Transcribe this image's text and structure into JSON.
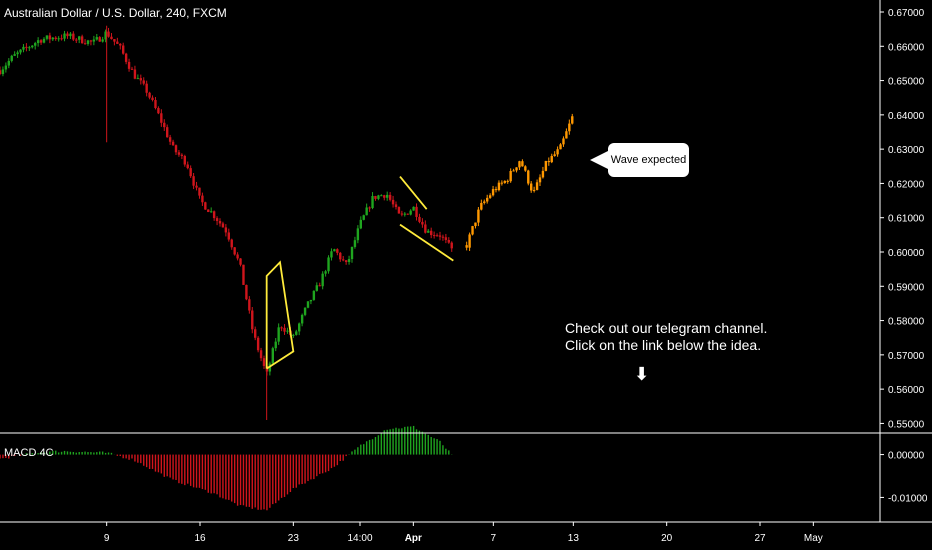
{
  "title": "Australian Dollar / U.S. Dollar, 240, FXCM",
  "indicator_label": "MACD 4C",
  "callout_text": "Wave expected",
  "note": {
    "line1": "Check out our telegram channel.",
    "line2": "Click on the link below the idea."
  },
  "arrow_glyph": "⬇",
  "colors": {
    "background": "#000000",
    "bull": "#1fa51f",
    "bear": "#d0151c",
    "projection": "#ff9800",
    "pattern": "#ffeb3b",
    "axis_text": "#ffffff",
    "divider": "#ffffff"
  },
  "chart_data": [
    {
      "type": "candlestick",
      "title": "Australian Dollar / U.S. Dollar, 240, FXCM",
      "y_ticks": [
        "0.67000",
        "0.66000",
        "0.65000",
        "0.64000",
        "0.63000",
        "0.62000",
        "0.61000",
        "0.60000",
        "0.59000",
        "0.58000",
        "0.57000",
        "0.56000",
        "0.55000"
      ],
      "ylim": [
        0.5475,
        0.6735
      ],
      "x_ticks": [
        "9",
        "16",
        "23",
        "14:00",
        "Apr",
        "7",
        "13",
        "20",
        "27",
        "May"
      ],
      "x_tick_dates": [
        "2019-03-09",
        "2019-03-16",
        "2019-03-23",
        "2019-03-28",
        "2019-04-01",
        "2019-04-07",
        "2019-04-13",
        "2019-04-20",
        "2019-04-27",
        "2019-05-01"
      ],
      "xlim_dates": [
        "2019-03-01",
        "2019-05-06"
      ],
      "series": [
        {
          "kind": "actual",
          "path": [
            [
              "2019-03-01",
              0.653
            ],
            [
              "2019-03-02",
              0.657
            ],
            [
              "2019-03-04",
              0.662
            ],
            [
              "2019-03-06",
              0.663
            ],
            [
              "2019-03-08",
              0.661
            ],
            [
              "2019-03-09",
              0.664
            ],
            [
              "2019-03-10",
              0.6595
            ],
            [
              "2019-03-11",
              0.652
            ],
            [
              "2019-03-12",
              0.647
            ],
            [
              "2019-03-13",
              0.639
            ],
            [
              "2019-03-14",
              0.63
            ],
            [
              "2019-03-15",
              0.626
            ],
            [
              "2019-03-16",
              0.615
            ],
            [
              "2019-03-17",
              0.611
            ],
            [
              "2019-03-18",
              0.606
            ],
            [
              "2019-03-19",
              0.596
            ],
            [
              "2019-03-20",
              0.576
            ],
            [
              "2019-03-21",
              0.564
            ],
            [
              "2019-03-22",
              0.579
            ],
            [
              "2019-03-23",
              0.575
            ],
            [
              "2019-03-24",
              0.584
            ],
            [
              "2019-03-25",
              0.591
            ],
            [
              "2019-03-26",
              0.601
            ],
            [
              "2019-03-27",
              0.596
            ],
            [
              "2019-03-28",
              0.608
            ],
            [
              "2019-03-29",
              0.616
            ],
            [
              "2019-03-30",
              0.617
            ],
            [
              "2019-03-31",
              0.61
            ],
            [
              "2019-04-01",
              0.613
            ],
            [
              "2019-04-02",
              0.606
            ],
            [
              "2019-04-03",
              0.605
            ],
            [
              "2019-04-04",
              0.6
            ]
          ]
        },
        {
          "kind": "projection",
          "path": [
            [
              "2019-04-05",
              0.602
            ],
            [
              "2019-04-06",
              0.613
            ],
            [
              "2019-04-07",
              0.618
            ],
            [
              "2019-04-08",
              0.621
            ],
            [
              "2019-04-09",
              0.627
            ],
            [
              "2019-04-10",
              0.617
            ],
            [
              "2019-04-11",
              0.626
            ],
            [
              "2019-04-12",
              0.63
            ],
            [
              "2019-04-13",
              0.64
            ]
          ]
        }
      ],
      "annotations": [
        {
          "type": "parallelogram",
          "points": [
            [
              "2019-03-21",
              0.566
            ],
            [
              "2019-03-21",
              0.593
            ],
            [
              "2019-03-22",
              0.597
            ],
            [
              "2019-03-23",
              0.571
            ]
          ]
        },
        {
          "type": "channel",
          "upper": [
            [
              "2019-03-31",
              0.622
            ],
            [
              "2019-04-02",
              0.6125
            ]
          ],
          "lower": [
            [
              "2019-03-31",
              0.608
            ],
            [
              "2019-04-04",
              0.5975
            ]
          ]
        }
      ]
    },
    {
      "type": "histogram",
      "title": "MACD 4C",
      "y_ticks": [
        "0.00000",
        "-0.01000"
      ],
      "ylim": [
        -0.0155,
        0.0048
      ],
      "series": [
        {
          "name": "MACD 4C",
          "path": [
            [
              "2019-03-01",
              -0.001
            ],
            [
              "2019-03-04",
              0.0006
            ],
            [
              "2019-03-06",
              0.0008
            ],
            [
              "2019-03-09",
              0.0004
            ],
            [
              "2019-03-11",
              -0.0012
            ],
            [
              "2019-03-14",
              -0.006
            ],
            [
              "2019-03-17",
              -0.009
            ],
            [
              "2019-03-19",
              -0.012
            ],
            [
              "2019-03-21",
              -0.013
            ],
            [
              "2019-03-23",
              -0.008
            ],
            [
              "2019-03-26",
              -0.003
            ],
            [
              "2019-03-28",
              0.002
            ],
            [
              "2019-03-30",
              0.006
            ],
            [
              "2019-04-01",
              0.0065
            ],
            [
              "2019-04-03",
              0.003
            ],
            [
              "2019-04-04",
              -0.0005
            ]
          ]
        }
      ]
    }
  ]
}
